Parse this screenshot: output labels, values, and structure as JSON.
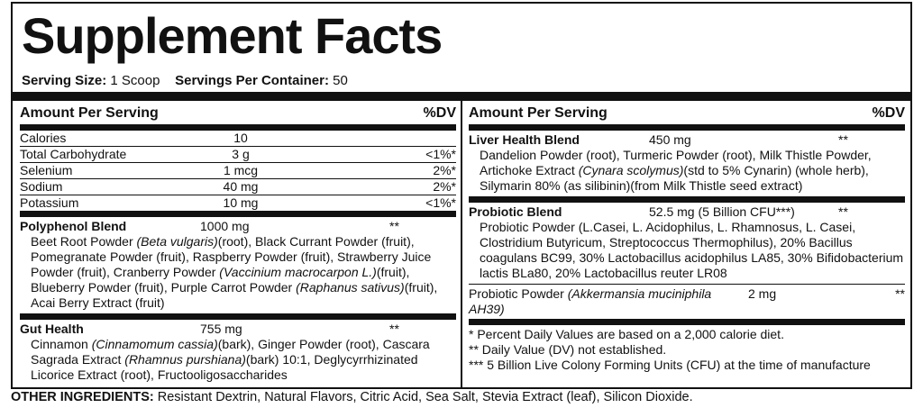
{
  "title": "Supplement Facts",
  "serving": {
    "size_label": "Serving Size:",
    "size": "1 Scoop",
    "per_container_label": "Servings Per Container:",
    "per_container": "50"
  },
  "left": {
    "header": {
      "amount": "Amount Per Serving",
      "dv": "%DV"
    },
    "nutrients": [
      {
        "name": "Calories",
        "amount": "10"
      },
      {
        "name": "Total Carbohydrate",
        "amount": "3 g",
        "dv": "<1%*"
      },
      {
        "name": "Selenium",
        "amount": "1 mcg",
        "dv": "2%*"
      },
      {
        "name": "Sodium",
        "amount": "40 mg",
        "dv": "2%*"
      },
      {
        "name": "Potassium",
        "amount": "10 mg",
        "dv": "<1%*"
      }
    ],
    "blends": [
      {
        "name": "Polyphenol Blend",
        "amount": "1000 mg",
        "dv": "**",
        "ingredients": [
          {
            "text": "Beet Root Powder "
          },
          {
            "text": "(Beta vulgaris)",
            "italic": true
          },
          {
            "text": "(root), Black Currant Powder (fruit), Pomegranate Powder (fruit), Raspberry Powder (fruit), Strawberry Juice Powder (fruit), Cranberry Powder "
          },
          {
            "text": "(Vaccinium macrocarpon L.)",
            "italic": true
          },
          {
            "text": "(fruit), Blueberry Powder (fruit), Purple Carrot Powder "
          },
          {
            "text": "(Raphanus sativus)",
            "italic": true
          },
          {
            "text": "(fruit), Acai Berry Extract (fruit)"
          }
        ]
      },
      {
        "name": "Gut Health",
        "amount": "755 mg",
        "dv": "**",
        "ingredients": [
          {
            "text": "Cinnamon "
          },
          {
            "text": "(Cinnamomum cassia)",
            "italic": true
          },
          {
            "text": "(bark), Ginger Powder (root), Cascara Sagrada Extract "
          },
          {
            "text": "(Rhamnus purshiana)",
            "italic": true
          },
          {
            "text": "(bark) 10:1, Deglycyrrhizinated Licorice Extract (root), Fructooligosaccharides"
          }
        ]
      }
    ]
  },
  "right": {
    "header": {
      "amount": "Amount Per Serving",
      "dv": "%DV"
    },
    "blends": [
      {
        "name": "Liver Health Blend",
        "amount": "450 mg",
        "dv": "**",
        "ingredients": [
          {
            "text": "Dandelion Powder (root), Turmeric Powder (root), Milk Thistle Powder, Artichoke Extract "
          },
          {
            "text": "(Cynara scolymus)",
            "italic": true
          },
          {
            "text": "(std to 5% Cynarin) (whole herb), Silymarin 80% (as silibinin)(from Milk Thistle seed extract)"
          }
        ]
      },
      {
        "name": "Probiotic Blend",
        "amount": "52.5 mg (5 Billion CFU***)",
        "dv": "**",
        "ingredients": [
          {
            "text": "Probiotic Powder (L.Casei, L. Acidophilus, L. Rhamnosus, L. Casei, Clostridium Butyricum, Streptococcus Thermophilus), 20% Bacillus coagulans BC99, 30% Lactobacillus acidophilus LA85, 30% Bifidobacterium lactis BLa80, 20% Lactobacillus reuter LR08"
          }
        ]
      }
    ],
    "items": [
      {
        "name": [
          {
            "text": "Probiotic Powder "
          },
          {
            "text": "(Akkermansia muciniphila AH39)",
            "italic": true
          }
        ],
        "amount": "2 mg",
        "dv": "**"
      }
    ],
    "footnotes": [
      "* Percent Daily Values are based on a 2,000 calorie diet.",
      "** Daily Value (DV) not established.",
      "*** 5 Billion Live Colony Forming Units (CFU) at the time of manufacture"
    ]
  },
  "other_ingredients": {
    "label": "OTHER INGREDIENTS:",
    "text": "Resistant Dextrin, Natural Flavors, Citric Acid, Sea Salt, Stevia Extract (leaf), Silicon Dioxide."
  }
}
